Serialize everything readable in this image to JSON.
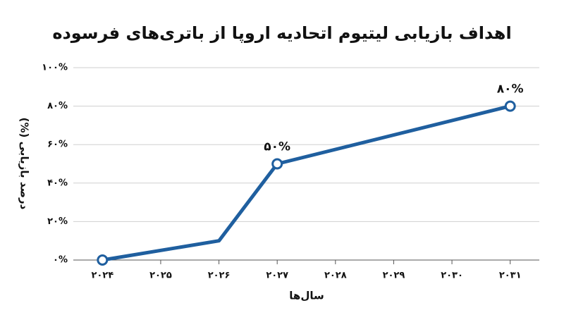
{
  "chart_data": {
    "type": "line",
    "title": "اهداف بازیابی لیتیوم اتحادیه اروپا از باتری‌های فرسوده",
    "x_label": "سال‌ها",
    "y_label": "درصد بازیابی (%)",
    "x": [
      2024,
      2026,
      2027,
      2031
    ],
    "series": [
      {
        "name": "درصد بازیابی",
        "color": "#1f5f9f",
        "values": [
          0,
          10,
          50,
          80
        ],
        "value_labels": [
          null,
          null,
          "۵۰%",
          "۸۰%"
        ],
        "markers": [
          true,
          false,
          true,
          true
        ]
      }
    ],
    "xlim": [
      2023.5,
      2031.5
    ],
    "xticks": [
      {
        "value": 2024,
        "label": "۲۰۲۴"
      },
      {
        "value": 2025,
        "label": "۲۰۲۵"
      },
      {
        "value": 2026,
        "label": "۲۰۲۶"
      },
      {
        "value": 2027,
        "label": "۲۰۲۷"
      },
      {
        "value": 2028,
        "label": "۲۰۲۸"
      },
      {
        "value": 2029,
        "label": "۲۰۲۹"
      },
      {
        "value": 2030,
        "label": "۲۰۳۰"
      },
      {
        "value": 2031,
        "label": "۲۰۳۱"
      }
    ],
    "ylim": [
      0,
      100
    ],
    "yticks": [
      {
        "value": 0,
        "label": "۰%"
      },
      {
        "value": 20,
        "label": "۲۰%"
      },
      {
        "value": 40,
        "label": "۴۰%"
      },
      {
        "value": 60,
        "label": "۶۰%"
      },
      {
        "value": 80,
        "label": "۸۰%"
      },
      {
        "value": 100,
        "label": "۱۰۰%"
      }
    ],
    "grid": true
  }
}
